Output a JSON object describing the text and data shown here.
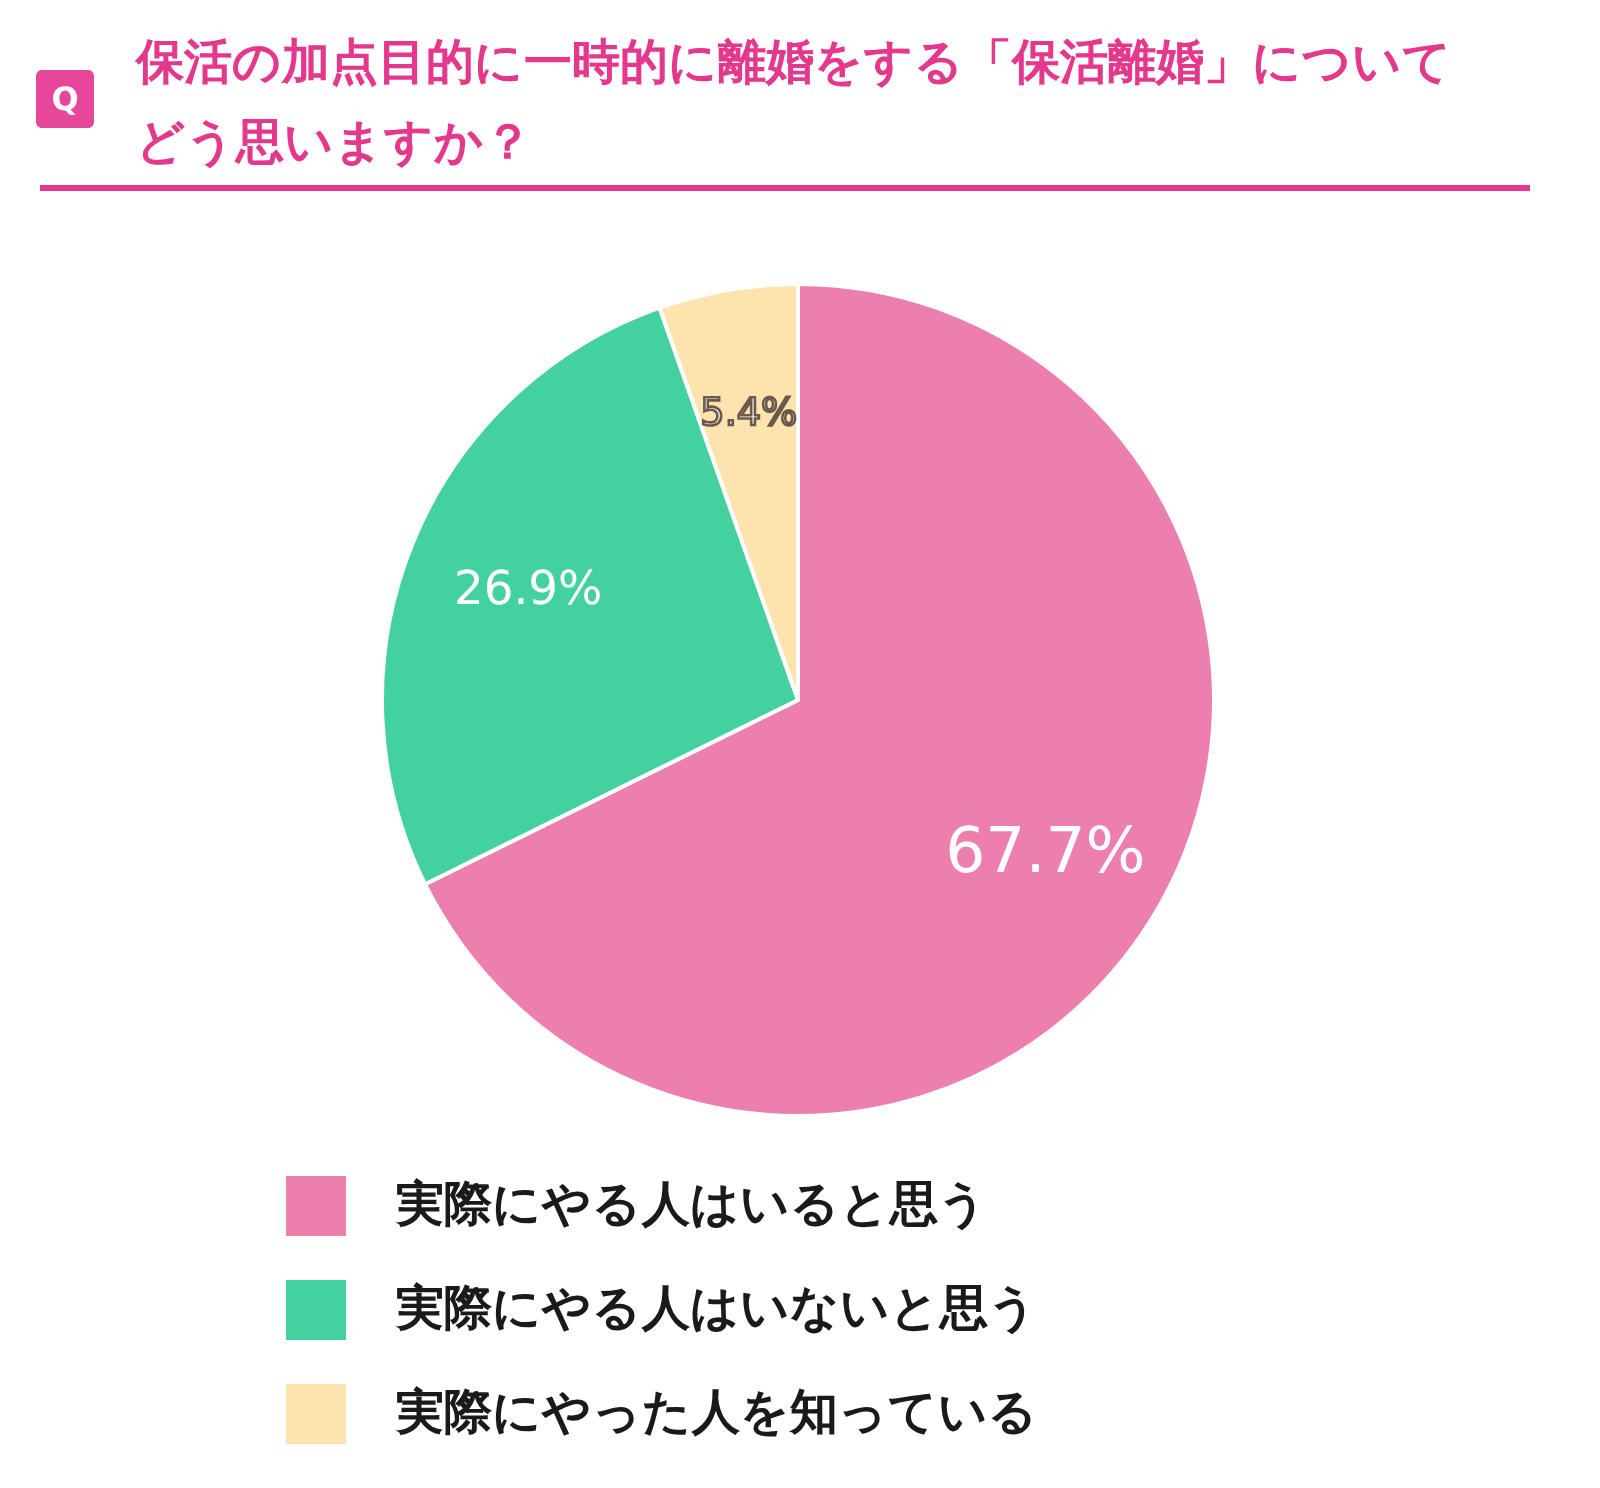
{
  "chart_data": {
    "type": "pie",
    "title": "保活の加点目的に一時的に離婚をする「保活離婚」についてどう思いますか？",
    "categories": [
      "実際にやる人はいると思う",
      "実際にやる人はいないと思う",
      "実際にやった人を知っている"
    ],
    "values": [
      67.7,
      26.9,
      5.4
    ],
    "colors": [
      "#ed7fae",
      "#44d1a0",
      "#fde4af"
    ],
    "value_labels": [
      "67.7%",
      "26.9%",
      "5.4%"
    ],
    "legend": "bottom",
    "annotations": [
      "Q"
    ]
  }
}
